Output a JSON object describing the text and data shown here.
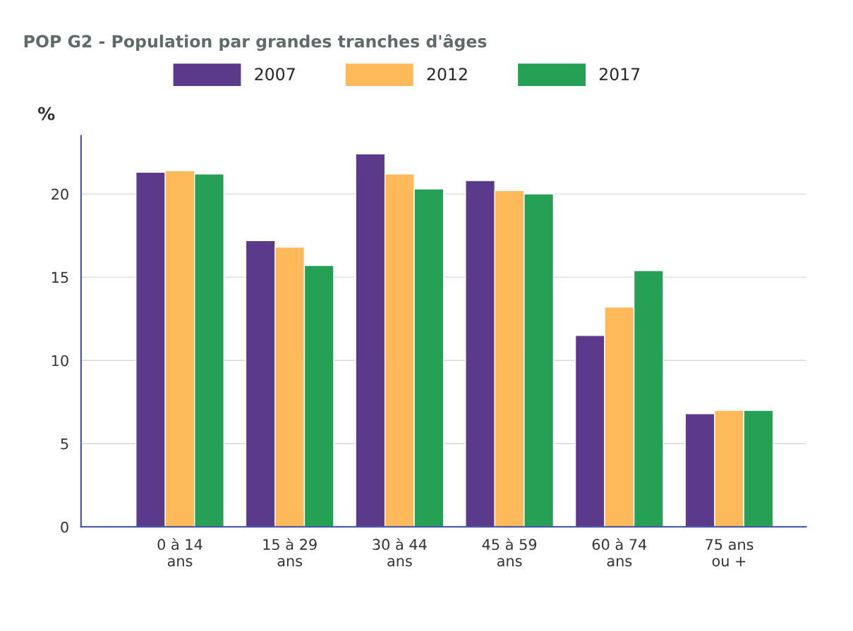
{
  "chart_data": {
    "type": "bar",
    "title": "POP G2 - Population par grandes tranches d'âges",
    "ylabel": "%",
    "categories": [
      "0 à 14\nans",
      "15 à 29\nans",
      "30 à 44\nans",
      "45 à 59\nans",
      "60 à 74\nans",
      "75 ans\nou +"
    ],
    "series": [
      {
        "name": "2007",
        "color": "#5b3a8c",
        "values": [
          21.3,
          17.2,
          22.4,
          20.8,
          11.5,
          6.8
        ]
      },
      {
        "name": "2012",
        "color": "#fdb95a",
        "values": [
          21.4,
          16.8,
          21.2,
          20.2,
          13.2,
          7.0
        ]
      },
      {
        "name": "2017",
        "color": "#25a055",
        "values": [
          21.2,
          15.7,
          20.3,
          20.0,
          15.4,
          7.0
        ]
      }
    ],
    "ylim": [
      0,
      23.5
    ],
    "yticks": [
      0,
      5,
      10,
      15,
      20
    ],
    "grid": "y",
    "legend": "top"
  }
}
